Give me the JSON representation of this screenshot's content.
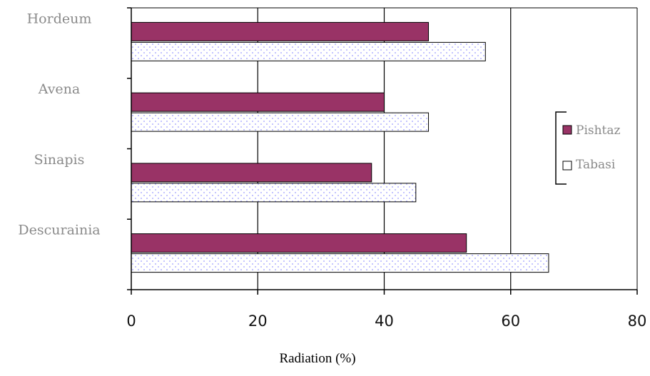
{
  "chart_data": {
    "type": "bar",
    "orientation": "horizontal",
    "title": "",
    "xlabel": "Radiation (%)",
    "ylabel": "",
    "xlim": [
      0,
      80
    ],
    "x_ticks": [
      "0",
      "20",
      "40",
      "60",
      "80"
    ],
    "categories": [
      "Hordeum",
      "Avena",
      "Sinapis",
      "Descurainia"
    ],
    "series": [
      {
        "name": "Pishtaz",
        "values": [
          47,
          40,
          38,
          53
        ],
        "color": "#993366",
        "pattern": "solid"
      },
      {
        "name": "Tabasi",
        "values": [
          56,
          47,
          45,
          66
        ],
        "color": "#ffffff",
        "pattern": "dotted",
        "dot_color": "#9999ff"
      }
    ],
    "grid": {
      "vertical_lines": true,
      "line_color": "#000000"
    },
    "legend": {
      "placement": "right"
    }
  }
}
